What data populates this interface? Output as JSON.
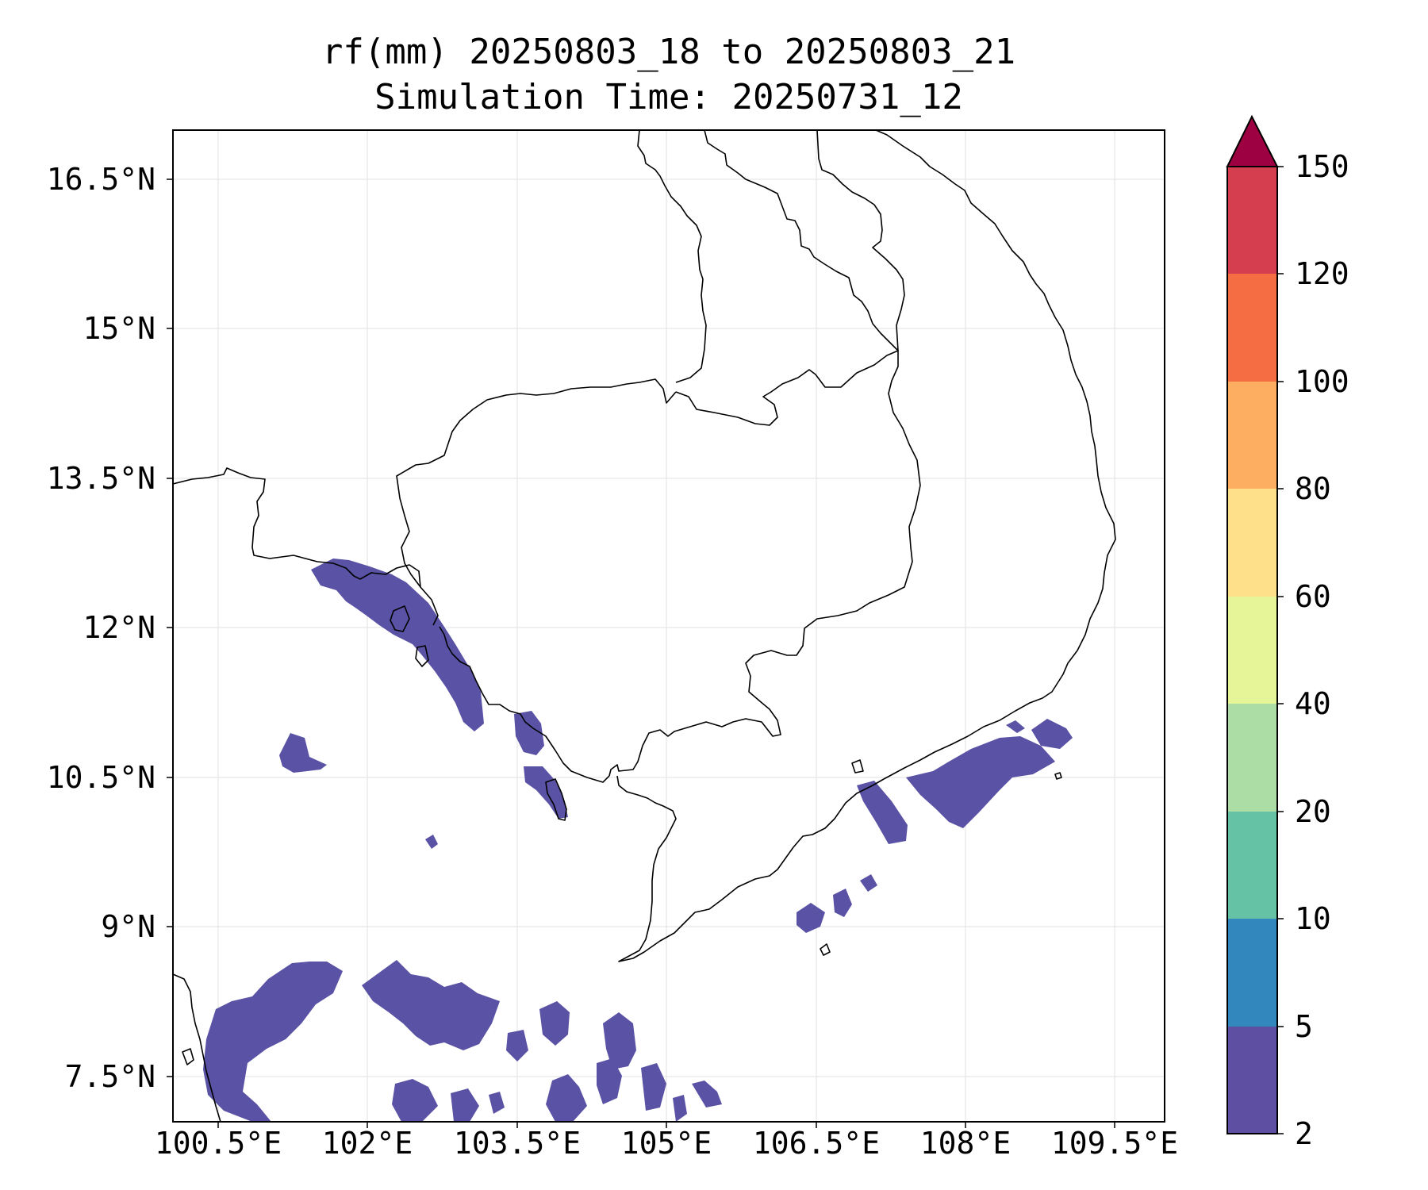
{
  "map": {
    "title_line1": "rf(mm) 20250803_18 to 20250803_21",
    "title_line2": "Simulation Time: 20250731_12",
    "lon_range": [
      100.05,
      110.0
    ],
    "lat_range": [
      7.05,
      16.95
    ],
    "lon_ticks": [
      "100.5°E",
      "102°E",
      "103.5°E",
      "105°E",
      "106.5°E",
      "108°E",
      "109.5°E"
    ],
    "lat_ticks": [
      "16.5°N",
      "15°N",
      "13.5°N",
      "12°N",
      "10.5°N",
      "9°N",
      "7.5°N"
    ],
    "gridlines": true,
    "colorbar": {
      "levels": [
        "150",
        "120",
        "100",
        "80",
        "60",
        "40",
        "20",
        "10",
        "5",
        "2"
      ],
      "colors": [
        "#9e0142",
        "#d53e4f",
        "#f46d43",
        "#fdae61",
        "#fee08b",
        "#e6f598",
        "#abdda4",
        "#66c2a5",
        "#3288bd",
        "#5e4fa2"
      ],
      "extend": "max"
    },
    "rain_color_light": "#5e4fa2",
    "rain_color_medium": "#4f5fad"
  }
}
